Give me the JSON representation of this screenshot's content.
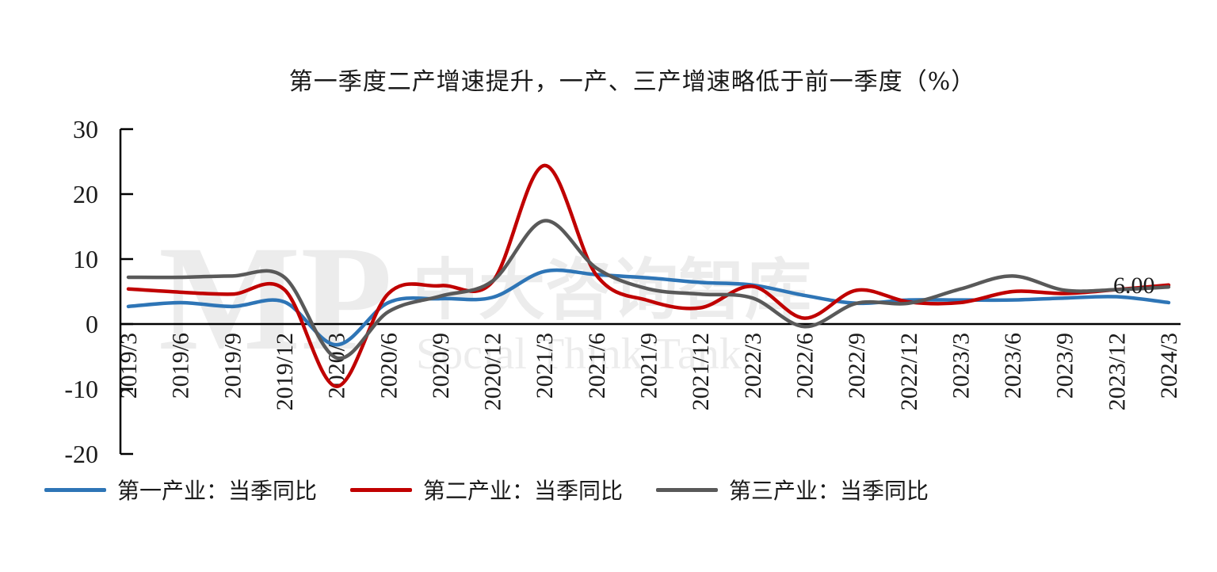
{
  "title": "第一季度二产增速提升，一产、三产增速略低于前一季度（%）",
  "watermark": {
    "logo_text": "MP",
    "cn_text": "中大咨询智库",
    "en_text": "Social Think Tank"
  },
  "annotation": "6.00",
  "legend": [
    {
      "label": "第一产业：当季同比",
      "color": "#2e75b6"
    },
    {
      "label": "第二产业：当季同比",
      "color": "#c00000"
    },
    {
      "label": "第三产业：当季同比",
      "color": "#595959"
    }
  ],
  "chart_data": {
    "type": "line",
    "title": "第一季度二产增速提升，一产、三产增速略低于前一季度（%）",
    "xlabel": "",
    "ylabel": "",
    "ylim": [
      -20,
      30
    ],
    "yticks": [
      30,
      20,
      10,
      0,
      -10,
      -20
    ],
    "grid": false,
    "legend_position": "bottom",
    "categories": [
      "2019/3",
      "2019/6",
      "2019/9",
      "2019/12",
      "2020/3",
      "2020/6",
      "2020/9",
      "2020/12",
      "2021/3",
      "2021/6",
      "2021/9",
      "2021/12",
      "2022/3",
      "2022/6",
      "2022/9",
      "2022/12",
      "2023/3",
      "2023/6",
      "2023/9",
      "2023/12",
      "2024/3"
    ],
    "series": [
      {
        "name": "第一产业：当季同比",
        "color": "#2e75b6",
        "values": [
          2.7,
          3.3,
          2.7,
          3.4,
          -3.2,
          3.3,
          3.9,
          4.1,
          8.1,
          7.6,
          7.1,
          6.4,
          6.0,
          4.4,
          3.2,
          3.7,
          3.7,
          3.7,
          4.0,
          4.2,
          3.3
        ]
      },
      {
        "name": "第二产业：当季同比",
        "color": "#c00000",
        "values": [
          5.4,
          4.9,
          4.6,
          5.3,
          -9.6,
          4.7,
          5.9,
          6.5,
          24.4,
          7.5,
          3.6,
          2.5,
          5.8,
          0.9,
          5.2,
          3.4,
          3.3,
          5.0,
          4.7,
          5.3,
          6.0
        ]
      },
      {
        "name": "第三产业：当季同比",
        "color": "#595959",
        "values": [
          7.2,
          7.2,
          7.4,
          7.2,
          -5.2,
          1.9,
          4.3,
          6.6,
          15.9,
          8.6,
          5.4,
          4.6,
          4.0,
          -0.4,
          3.2,
          3.2,
          5.4,
          7.4,
          5.2,
          5.3,
          5.7
        ]
      }
    ],
    "annotations": [
      {
        "text": "6.00",
        "x": "2024/3",
        "series": "第二产业：当季同比"
      }
    ]
  }
}
